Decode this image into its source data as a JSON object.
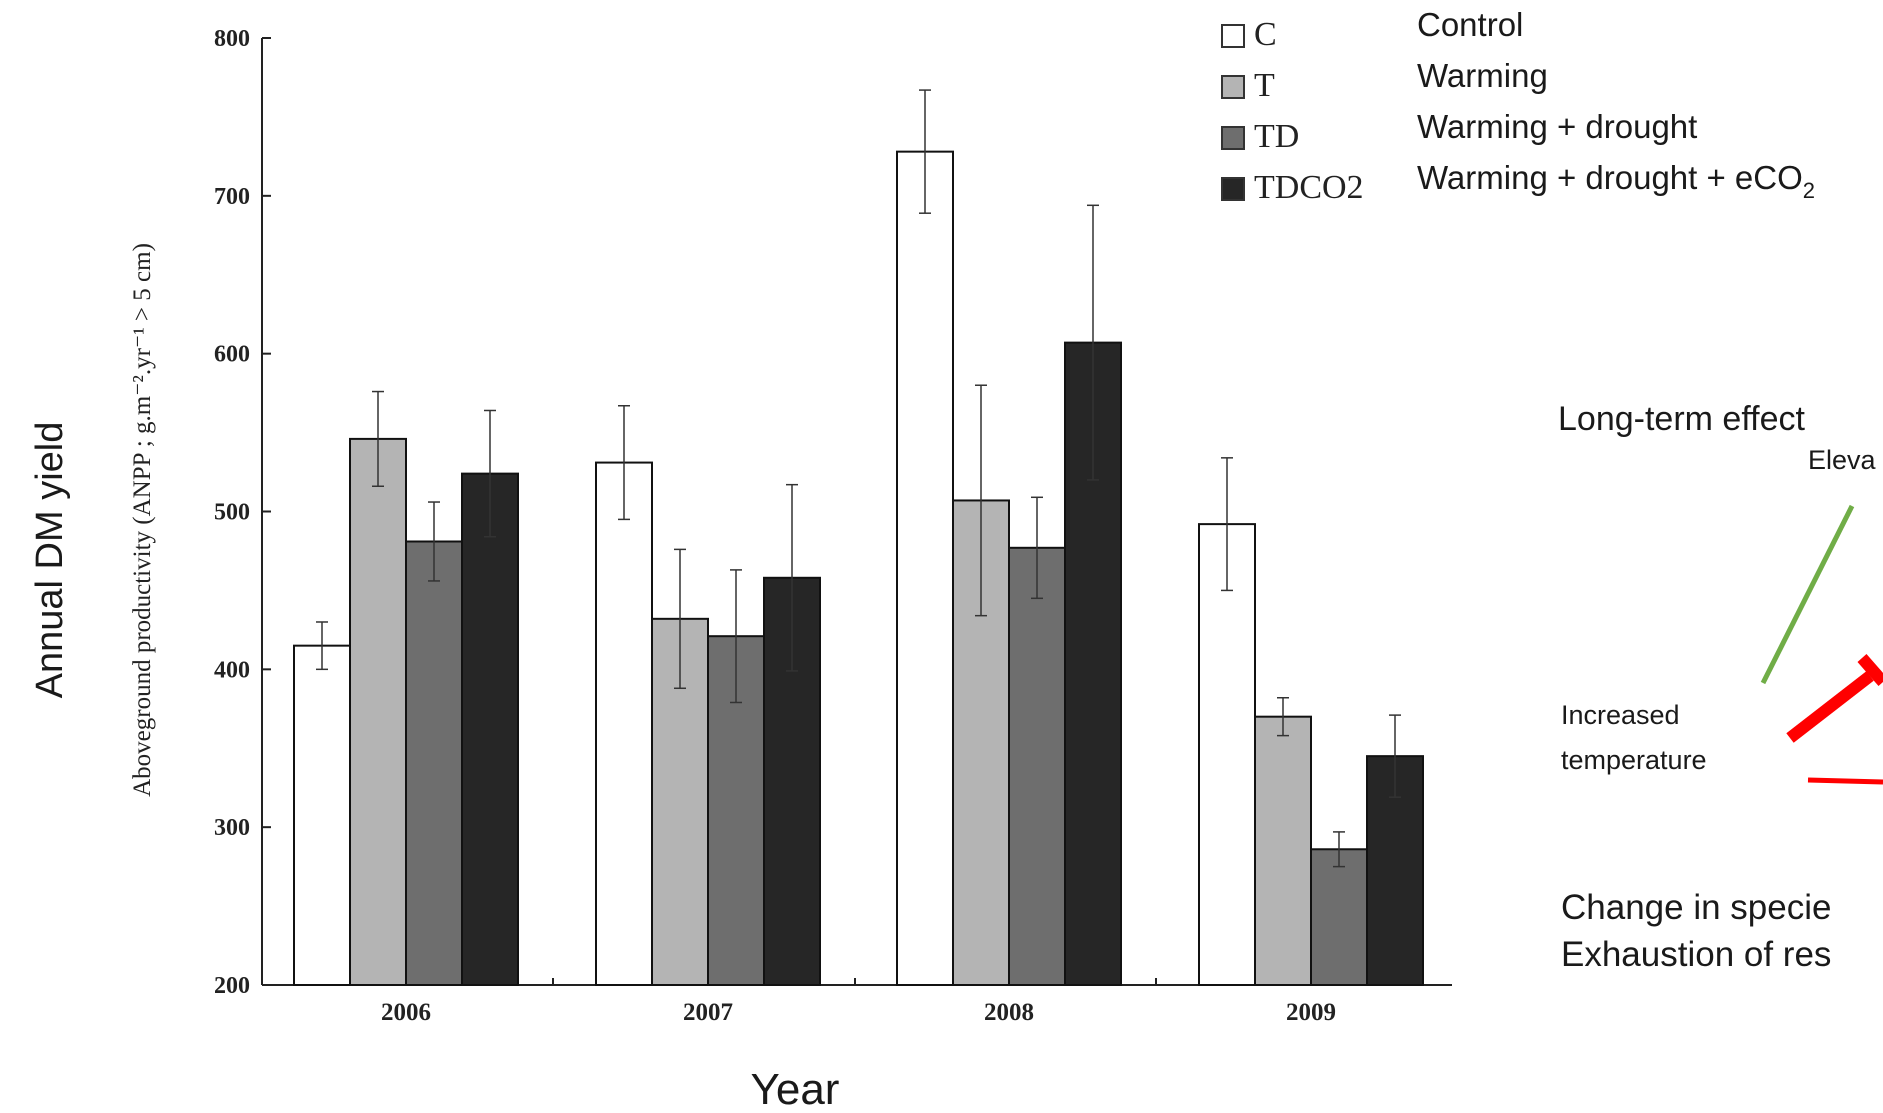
{
  "chart_data": {
    "type": "bar",
    "categories": [
      "2006",
      "2007",
      "2008",
      "2009"
    ],
    "series": [
      {
        "name": "C",
        "color": "#ffffff",
        "values": [
          415,
          531,
          728,
          492
        ],
        "errors": [
          15,
          36,
          39,
          42
        ]
      },
      {
        "name": "T",
        "color": "#b4b4b4",
        "values": [
          546,
          432,
          507,
          370
        ],
        "errors": [
          30,
          44,
          73,
          12
        ]
      },
      {
        "name": "TD",
        "color": "#6e6e6e",
        "values": [
          481,
          421,
          477,
          286
        ],
        "errors": [
          25,
          42,
          32,
          11
        ]
      },
      {
        "name": "TDCO2",
        "color": "#262626",
        "values": [
          524,
          458,
          607,
          345
        ],
        "errors": [
          40,
          59,
          87,
          26
        ]
      }
    ],
    "yticks": [
      200,
      300,
      400,
      500,
      600,
      700,
      800
    ],
    "ylim": [
      200,
      800
    ],
    "ylabel_inner": "Aboveground productivity (ANPP ; g.m⁻².yr⁻¹ > 5 cm)",
    "ylabel_outer": "Annual DM yield",
    "xlabel": "Year",
    "legend": {
      "placement": "top-right",
      "descriptions": [
        "Control",
        "Warming",
        "Warming + drought",
        "Warming + drought + eCO"
      ],
      "subscript_last": "2"
    }
  },
  "side_panel": {
    "title": "Long-term effect",
    "label_elevated": "Eleva",
    "label_increased": "Increased",
    "label_temperature": "temperature",
    "line1": "Change in specie",
    "line2": "Exhaustion of res",
    "color_positive": "#70ad47",
    "color_negative": "#ff0000"
  }
}
